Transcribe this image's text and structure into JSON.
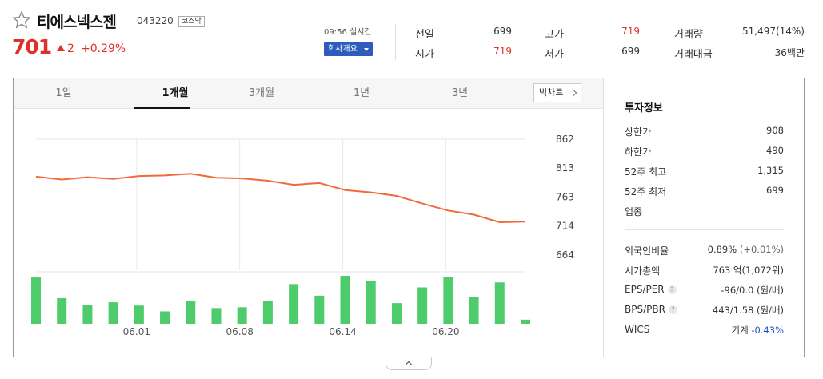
{
  "header": {
    "name": "티에스넥스젠",
    "code": "043220",
    "market": "코스닥",
    "price": "701",
    "change_amount": "2",
    "change_percent": "+0.29%",
    "time": "09:56 실시간",
    "company_button": "회사개요"
  },
  "quote": {
    "prev_label": "전일",
    "prev": "699",
    "open_label": "시가",
    "open": "719",
    "high_label": "고가",
    "high": "719",
    "low_label": "저가",
    "low": "699",
    "volume_label": "거래량",
    "volume": "51,497(14%)",
    "value_label": "거래대금",
    "value": "36백만"
  },
  "tabs": [
    "1일",
    "1개월",
    "3개월",
    "1년",
    "3년"
  ],
  "active_tab": "1개월",
  "big_chart_label": "빅차트",
  "chart_data": {
    "type": "line",
    "price_series": [
      798,
      793,
      797,
      794,
      799,
      800,
      803,
      796,
      795,
      791,
      784,
      787,
      775,
      771,
      765,
      752,
      740,
      733,
      720,
      721
    ],
    "volume_series": [
      56,
      31,
      23,
      26,
      22,
      15,
      28,
      19,
      20,
      28,
      48,
      34,
      58,
      52,
      25,
      44,
      57,
      32,
      50,
      5
    ],
    "y_ticks": [
      "862",
      "813",
      "763",
      "714",
      "664"
    ],
    "ylim": [
      664,
      862
    ],
    "x_ticks": [
      "06.01",
      "06.08",
      "06.14",
      "06.20"
    ],
    "x_tick_index": [
      4,
      8,
      12,
      16
    ],
    "line_color": "#f26a3c",
    "bar_color": "#4ecb6b",
    "grid": true
  },
  "invest": {
    "title": "투자정보",
    "upper_label": "상한가",
    "upper": "908",
    "lower_label": "하한가",
    "lower": "490",
    "high52_label": "52주 최고",
    "high52": "1,315",
    "low52_label": "52주 최저",
    "low52": "699",
    "sector_label": "업종",
    "foreign_label": "외국인비율",
    "foreign": "0.89%",
    "foreign_change": "(+0.01%)",
    "cap_label": "시가총액",
    "cap": "763 억(1,072위)",
    "eps_label": "EPS/PER",
    "eps": "-96/0.0 (원/배)",
    "bps_label": "BPS/PBR",
    "bps": "443/1.58 (원/배)",
    "wics_label": "WICS",
    "wics": "기계",
    "wics_change": "-0.43%"
  },
  "colors": {
    "up": "#e0302a",
    "down": "#2152c5",
    "accent_button": "#2d5cbd"
  }
}
